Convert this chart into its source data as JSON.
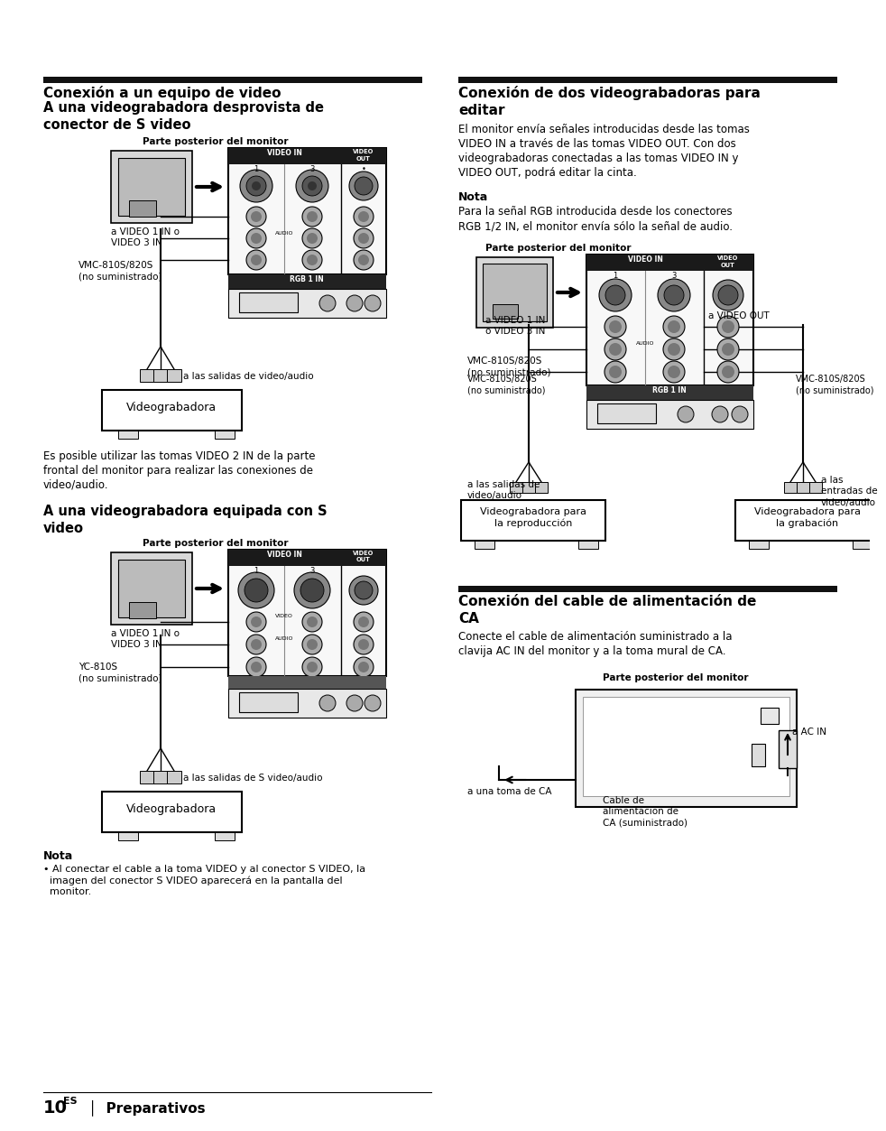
{
  "page_bg": "#ffffff",
  "header_bar_color": "#111111",
  "section1_title": "Conexión a un equipo de video",
  "section1_sub1": "A una videograbadora desprovista de\nconector de S video",
  "section1_diag1_lbl": "Parte posterior del monitor",
  "section1_lbl_vid1in": "a VIDEO 1 IN o\nVIDEO 3 IN",
  "section1_lbl_vmc1": "VMC-810S/820S\n(no suministrado)",
  "section1_lbl_salidas1": "a las salidas de video/audio",
  "section1_vcr1": "Videograbadora",
  "section1_text1": "Es posible utilizar las tomas VIDEO 2 IN de la parte\nfrontal del monitor para realizar las conexiones de\nvideo/audio.",
  "section1_sub2": "A una videograbadora equipada con S\nvideo",
  "section1_diag2_lbl": "Parte posterior del monitor",
  "section1_lbl_vid1in2": "a VIDEO 1 IN o\nVIDEO 3 IN",
  "section1_lbl_yc": "YC-810S\n(no suministrado)",
  "section1_lbl_salidas2": "a las salidas de S video/audio",
  "section1_vcr2": "Videograbadora",
  "nota1_title": "Nota",
  "nota1_text": "• Al conectar el cable a la toma VIDEO y al conector S VIDEO, la\n  imagen del conector S VIDEO aparecerá en la pantalla del\n  monitor.",
  "section2_title": "Conexión de dos videograbadoras para\neditar",
  "section2_text": "El monitor envía señales introducidas desde las tomas\nVIDEO IN a través de las tomas VIDEO OUT. Con dos\nvideograbadoras conectadas a las tomas VIDEO IN y\nVIDEO OUT, podrá editar la cinta.",
  "nota2_title": "Nota",
  "nota2_text": "Para la señal RGB introducida desde los conectores\nRGB 1/2 IN, el monitor envía sólo la señal de audio.",
  "section2_diag_lbl": "Parte posterior del monitor",
  "section2_lbl_vid1in": "a VIDEO 1 IN\no VIDEO 3 IN",
  "section2_lbl_vmc2": "VMC-810S/820S\n(no suministrado)",
  "section2_lbl_salidas": "a las salidas de\nvideo/audio",
  "section2_lbl_vidout": "a VIDEO OUT",
  "section2_lbl_vmc3": "VMC-810S/820S\n(no suministrado)",
  "section2_lbl_entradas": "a las\nentradas de\nvideo/audio",
  "section2_vcr_rep": "Videograbadora para\nla reproducción",
  "section2_vcr_grab": "Videograbadora para\nla grabación",
  "section3_title": "Conexión del cable de alimentación de\nCA",
  "section3_text": "Conecte el cable de alimentación suministrado a la\nclavija AC IN del monitor y a la toma mural de CA.",
  "section3_diag_lbl": "Parte posterior del monitor",
  "section3_lbl_toma": "a una toma de CA",
  "section3_lbl_acin": "a AC IN",
  "section3_lbl_cable": "Cable de\nalimentación de\nCA (suministrado)",
  "footer_num": "10",
  "footer_sup": "ES",
  "footer_section": "Preparativos"
}
